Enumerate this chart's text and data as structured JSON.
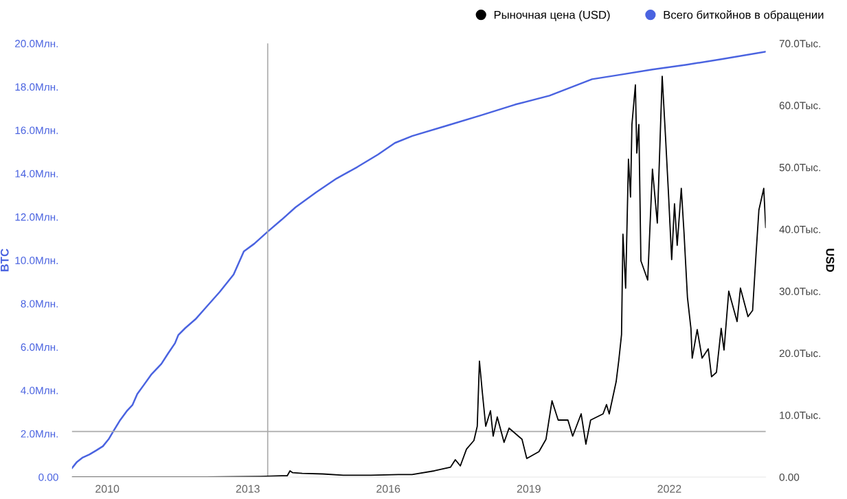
{
  "chart_data": {
    "type": "line",
    "xlabel": null,
    "ylabel": "BTC",
    "y2label": "USD",
    "x": [
      "2009-04-01",
      "2009-05-10",
      "2009-06-20",
      "2009-08-15",
      "2009-10-08",
      "2009-11-28",
      "2010-01-11",
      "2010-02-18",
      "2010-04-12",
      "2010-06-06",
      "2010-07-16",
      "2010-08-23",
      "2010-10-16",
      "2010-12-09",
      "2011-02-27",
      "2011-04-20",
      "2011-06-13",
      "2011-07-09",
      "2011-09-01",
      "2011-11-20",
      "2012-02-09",
      "2012-05-27",
      "2012-09-12",
      "2012-12-01",
      "2013-02-20",
      "2013-06-07",
      "2013-09-22",
      "2014-01-08",
      "2014-06-17",
      "2014-11-24",
      "2015-05-05",
      "2015-10-12",
      "2016-02-22",
      "2016-07-06",
      "2017-03-29",
      "2017-12-22",
      "2018-09-17",
      "2019-06-11",
      "2020-05-08",
      "2020-11-27",
      "2021-08-22",
      "2022-05-17",
      "2023-02-10",
      "2024-01-22"
    ],
    "series": [
      {
        "name": "Рыночная цена (USD)",
        "color": "#000000",
        "axis": "y2",
        "x": [
          "2009-04-01",
          "2012-02-09",
          "2013-04-12",
          "2013-09-22",
          "2013-11-04",
          "2013-11-26",
          "2013-12-17",
          "2014-03-01",
          "2014-08-08",
          "2015-01-15",
          "2015-08-18",
          "2016-03-20",
          "2016-07-05",
          "2016-12-25",
          "2017-05-01",
          "2017-06-07",
          "2017-07-16",
          "2017-09-02",
          "2017-10-30",
          "2017-11-25",
          "2017-12-12",
          "2018-01-03",
          "2018-01-30",
          "2018-03-08",
          "2018-03-29",
          "2018-04-30",
          "2018-06-22",
          "2018-07-31",
          "2018-11-09",
          "2018-12-16",
          "2019-03-21",
          "2019-05-15",
          "2019-07-01",
          "2019-08-18",
          "2019-11-02",
          "2019-12-09",
          "2020-02-13",
          "2020-03-21",
          "2020-04-27",
          "2020-08-02",
          "2020-08-29",
          "2020-09-19",
          "2020-11-12",
          "2020-12-03",
          "2020-12-24",
          "2021-01-04",
          "2021-01-25",
          "2021-02-16",
          "2021-03-04",
          "2021-03-15",
          "2021-04-11",
          "2021-04-22",
          "2021-05-08",
          "2021-05-24",
          "2021-07-16",
          "2021-08-22",
          "2021-09-29",
          "2021-11-06",
          "2021-12-02",
          "2021-12-24",
          "2022-01-19",
          "2022-02-10",
          "2022-03-03",
          "2022-04-04",
          "2022-04-25",
          "2022-05-22",
          "2022-06-18",
          "2022-06-28",
          "2022-08-06",
          "2022-09-13",
          "2022-10-31",
          "2022-11-26",
          "2023-01-03",
          "2023-02-09",
          "2023-03-03",
          "2023-04-09",
          "2023-06-13",
          "2023-07-09",
          "2023-09-06",
          "2023-10-12",
          "2023-11-09",
          "2023-11-30",
          "2024-01-07",
          "2024-01-22"
        ],
        "values": [
          0,
          0,
          0.1,
          0.2,
          0.2,
          1.0,
          0.7,
          0.6,
          0.5,
          0.3,
          0.3,
          0.4,
          0.4,
          1.0,
          1.6,
          2.8,
          1.8,
          4.5,
          5.9,
          8.2,
          18.7,
          13.8,
          8.2,
          10.7,
          6.6,
          9.7,
          5.6,
          7.9,
          6.1,
          3.0,
          4.1,
          6.1,
          12.3,
          9.2,
          9.2,
          6.6,
          10.2,
          5.3,
          9.2,
          10.2,
          11.7,
          10.2,
          15.4,
          18.9,
          23.0,
          39.2,
          30.5,
          51.3,
          45.2,
          56.9,
          63.3,
          52.3,
          56.9,
          34.9,
          31.8,
          49.7,
          41.0,
          64.7,
          54.9,
          46.2,
          35.1,
          44.1,
          37.4,
          46.6,
          39.5,
          29.0,
          24.0,
          19.2,
          23.8,
          19.2,
          20.7,
          16.2,
          16.9,
          24.0,
          20.5,
          30.0,
          25.1,
          30.5,
          25.9,
          26.9,
          36.4,
          43.1,
          46.6,
          40.3
        ]
      },
      {
        "name": "Всего биткойнов в обращении",
        "color": "#4a63e0",
        "axis": "y",
        "values": [
          0.41,
          0.7,
          0.89,
          1.04,
          1.23,
          1.42,
          1.74,
          2.12,
          2.63,
          3.07,
          3.32,
          3.83,
          4.27,
          4.72,
          5.22,
          5.7,
          6.17,
          6.55,
          6.87,
          7.28,
          7.82,
          8.54,
          9.34,
          10.41,
          10.76,
          11.33,
          11.87,
          12.44,
          13.13,
          13.77,
          14.3,
          14.87,
          15.41,
          15.73,
          16.2,
          16.68,
          17.18,
          17.59,
          18.35,
          18.54,
          18.8,
          19.02,
          19.27,
          19.62
        ]
      }
    ],
    "xlim": [
      "2009-04-01",
      "2024-01-22"
    ],
    "xticks": [
      {
        "value": "2010",
        "label": "2010"
      },
      {
        "value": "2013",
        "label": "2013"
      },
      {
        "value": "2016",
        "label": "2016"
      },
      {
        "value": "2019",
        "label": "2019"
      },
      {
        "value": "2022",
        "label": "2022"
      }
    ],
    "ylim": [
      0,
      20
    ],
    "yticks": [
      {
        "value": 0,
        "label": "0.00"
      },
      {
        "value": 2,
        "label": "2.0Млн."
      },
      {
        "value": 4,
        "label": "4.0Млн."
      },
      {
        "value": 6,
        "label": "6.0Млн."
      },
      {
        "value": 8,
        "label": "8.0Млн."
      },
      {
        "value": 10,
        "label": "10.0Млн."
      },
      {
        "value": 12,
        "label": "12.0Млн."
      },
      {
        "value": 14,
        "label": "14.0Млн."
      },
      {
        "value": 16,
        "label": "16.0Млн."
      },
      {
        "value": 18,
        "label": "18.0Млн."
      },
      {
        "value": 20,
        "label": "20.0Млн."
      }
    ],
    "y2lim": [
      0,
      70
    ],
    "y2ticks": [
      {
        "value": 0,
        "label": "0.00"
      },
      {
        "value": 10,
        "label": "10.0Тыс."
      },
      {
        "value": 20,
        "label": "20.0Тыс."
      },
      {
        "value": 30,
        "label": "30.0Тыс."
      },
      {
        "value": 40,
        "label": "40.0Тыс."
      },
      {
        "value": 50,
        "label": "50.0Тыс."
      },
      {
        "value": 60,
        "label": "60.0Тыс."
      },
      {
        "value": 70,
        "label": "70.0Тыс."
      }
    ],
    "ref_lines": [
      {
        "axis": "x",
        "value": "2013-06-05",
        "color": "#aaaaaa"
      },
      {
        "axis": "y",
        "value": 2.1,
        "color": "#aaaaaa"
      }
    ],
    "grid": false,
    "legend": "top right",
    "line_style": "solid"
  }
}
